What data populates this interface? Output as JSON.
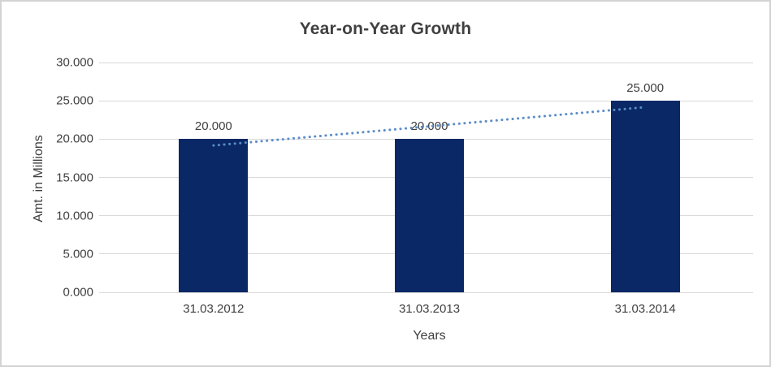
{
  "window": {
    "background_color": "#ffffff",
    "border_color": "#d3d3d3"
  },
  "chart_data": {
    "type": "bar",
    "title": "Year-on-Year Growth",
    "categories": [
      "31.03.2012",
      "31.03.2013",
      "31.03.2014"
    ],
    "values": [
      20,
      20,
      25
    ],
    "value_labels": [
      "20.000",
      "20.000",
      "25.000"
    ],
    "xlabel": "Years",
    "ylabel": "Amt. in Millions",
    "ylim": [
      0,
      30
    ],
    "ytick_step": 5,
    "ytick_labels": [
      "30.000",
      "25.000",
      "20.000",
      "15.000",
      "10.000",
      "5.000",
      "0.000"
    ],
    "grid": true,
    "legend_position": "none",
    "bar_color": "#0a2766",
    "grid_color": "#d9d9d9",
    "text_color": "#404040",
    "trendline": {
      "type": "linear",
      "style": "dotted",
      "color": "#5a8cc8",
      "start_value": 19.17,
      "end_value": 24.17
    }
  }
}
